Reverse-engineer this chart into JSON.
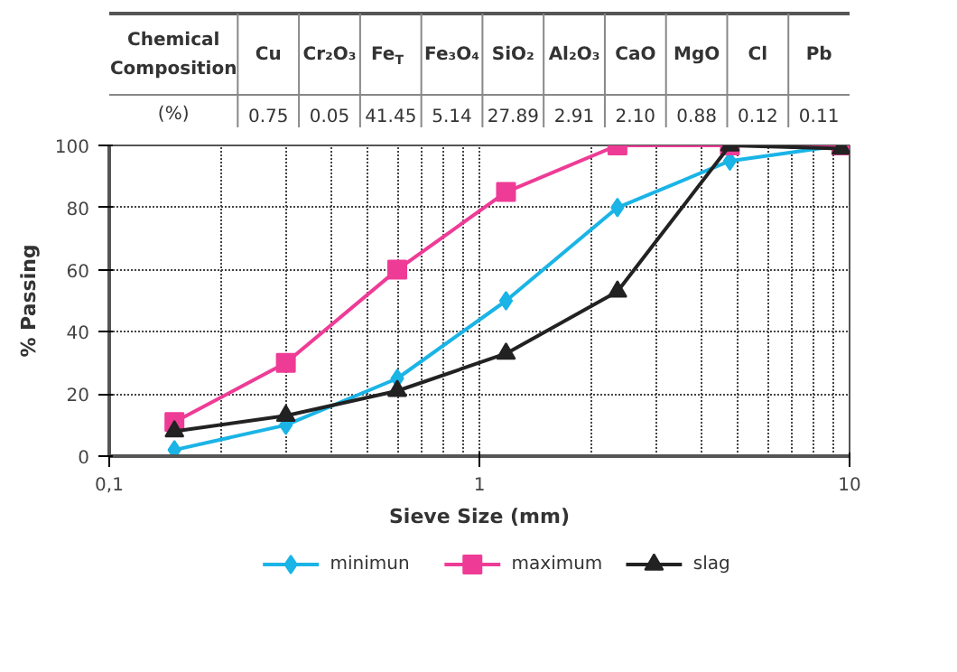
{
  "chart_data": [
    {
      "type": "other",
      "annotations": [
        "Chemical Composition",
        "(%)"
      ],
      "categories": [
        "Cu",
        "Cr₂O₃",
        "Fe$_{T}$",
        "Fe₃O₄",
        "SiO₂",
        "Al₂O₃",
        "CaO",
        "MgO",
        "Cl",
        "Pb"
      ],
      "value_labels": [
        "0.75",
        "0.05",
        "41.45",
        "5.14",
        "27.89",
        "2.91",
        "2.10",
        "0.88",
        "0.12",
        "0.11"
      ]
    },
    {
      "type": "line",
      "xlabel": "Sieve Size (mm)",
      "ylabel": "% Passing",
      "log": "x",
      "xlim": [
        0.1,
        10
      ],
      "xticks": [
        {
          "value": 0.1,
          "label": "0,1"
        },
        1,
        10
      ],
      "ylim": [
        0,
        100
      ],
      "yticks": [
        0,
        20,
        40,
        60,
        80,
        100
      ],
      "grid": true,
      "legend": "bottom",
      "x": [
        0.15,
        0.3,
        0.6,
        1.18,
        2.36,
        4.75,
        9.5
      ],
      "series": [
        {
          "name": "minimun",
          "color": "#1ab4e6",
          "marker": "diamond",
          "values": [
            2,
            10,
            25,
            50,
            80,
            95,
            100
          ]
        },
        {
          "name": "maximum",
          "color": "#ee3c96",
          "marker": "square",
          "values": [
            11,
            30,
            60,
            85,
            100,
            100,
            100
          ]
        },
        {
          "name": "slag",
          "color": "#222222",
          "marker": "triangle",
          "values": [
            8,
            13,
            21,
            33,
            53,
            100,
            99
          ]
        }
      ]
    }
  ]
}
